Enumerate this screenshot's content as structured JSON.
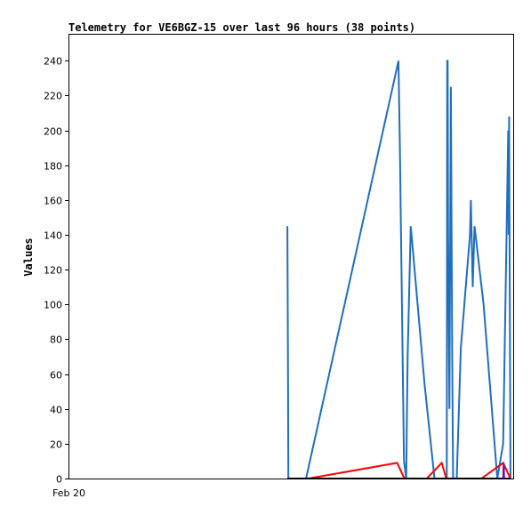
{
  "chart_data": {
    "type": "line",
    "title": "Telemetry for VE6BGZ-15 over last 96 hours (38 points)",
    "xlabel": "",
    "ylabel": "Values",
    "x_tick_labels": [
      "Feb 20"
    ],
    "x_unit": "hours since Feb 20 00:00",
    "xlim": [
      0,
      97.5
    ],
    "ylim": [
      0,
      255
    ],
    "y_ticks": [
      0,
      20,
      40,
      60,
      80,
      100,
      120,
      140,
      160,
      180,
      200,
      220,
      240
    ],
    "grid": false,
    "legend": "none",
    "series": [
      {
        "color": "#1f6fbf",
        "points": [
          [
            47.9,
            145
          ],
          [
            48.0,
            75
          ],
          [
            48.1,
            0
          ],
          [
            52.0,
            0
          ],
          [
            72.3,
            240
          ],
          [
            72.6,
            190
          ],
          [
            73.5,
            10
          ],
          [
            74.0,
            0
          ],
          [
            74.3,
            70
          ],
          [
            75.0,
            145
          ],
          [
            75.5,
            130
          ],
          [
            78.0,
            55
          ],
          [
            80.2,
            0
          ],
          [
            82.9,
            0
          ],
          [
            83.0,
            240
          ],
          [
            83.1,
            240
          ],
          [
            83.2,
            140
          ],
          [
            83.5,
            40
          ],
          [
            83.8,
            225
          ],
          [
            84.1,
            70
          ],
          [
            84.3,
            0
          ],
          [
            85.1,
            0
          ],
          [
            86.0,
            75
          ],
          [
            88.0,
            140
          ],
          [
            88.2,
            160
          ],
          [
            88.6,
            110
          ],
          [
            89.0,
            145
          ],
          [
            91.0,
            100
          ],
          [
            94.0,
            0
          ],
          [
            95.3,
            20
          ],
          [
            96.4,
            200
          ],
          [
            96.5,
            140
          ],
          [
            96.6,
            208
          ],
          [
            96.9,
            0
          ]
        ]
      },
      {
        "color": "#ff0000",
        "points": [
          [
            47.9,
            0
          ],
          [
            52.5,
            0
          ],
          [
            72.0,
            9
          ],
          [
            73.6,
            0
          ],
          [
            78.5,
            0
          ],
          [
            81.8,
            9
          ],
          [
            82.8,
            0
          ],
          [
            82.9,
            0
          ],
          [
            90.5,
            0
          ],
          [
            95.3,
            9
          ],
          [
            96.9,
            0
          ]
        ]
      },
      {
        "color": "#000000",
        "points": [
          [
            47.9,
            0
          ],
          [
            96.9,
            0
          ]
        ]
      },
      {
        "color": "#6a0dad",
        "points": [
          [
            95.3,
            0
          ],
          [
            95.4,
            9
          ],
          [
            95.5,
            0
          ]
        ]
      }
    ]
  }
}
